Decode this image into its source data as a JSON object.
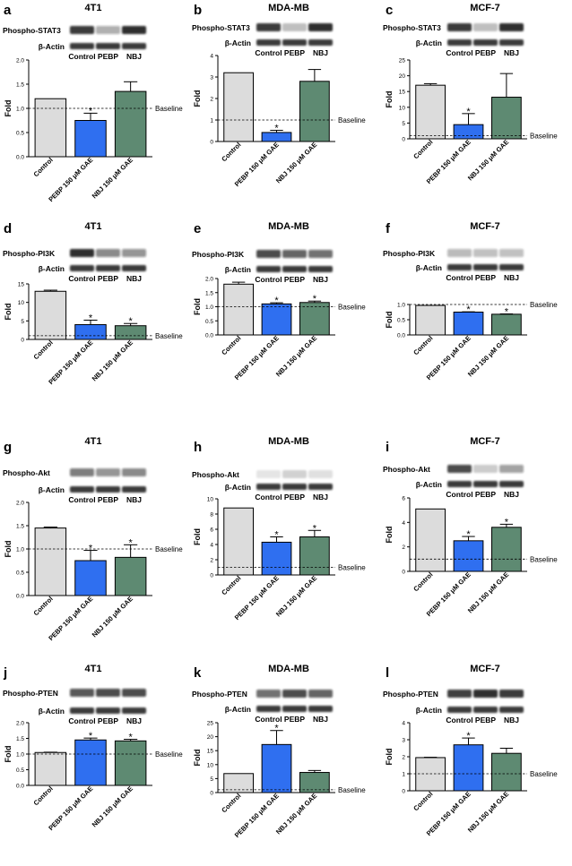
{
  "figure": {
    "colors": {
      "control": "#dcdcdc",
      "pebp": "#2f6ff0",
      "nbj": "#5e8a72",
      "edge": "#000000",
      "blot_dark": "#141414"
    },
    "baseline_label": "Baseline",
    "ylabel": "Fold",
    "x_tick_labels": [
      "Control",
      "PEBP 150 μM GAE",
      "NBJ 150 μM GAE"
    ],
    "blot_lane_labels": [
      "Control",
      "PEBP",
      "NBJ"
    ],
    "actin_label": "β-Actin",
    "significance_mark": "*"
  },
  "chart_data": [
    {
      "id": "a",
      "type": "bar",
      "panel_letter": "a",
      "title": "4T1",
      "blot_label": "Phospho-STAT3",
      "ylabel": "Fold",
      "categories": [
        "Control",
        "PEBP 150 μM GAE",
        "NBJ 150 μM GAE"
      ],
      "values": [
        1.2,
        0.75,
        1.35
      ],
      "errors": [
        0,
        0.15,
        0.2
      ],
      "significant": [
        false,
        true,
        false
      ],
      "baseline": 1.0,
      "ylim": [
        0,
        2.0
      ],
      "yticks": [
        0,
        0.5,
        1.0,
        1.5,
        2.0
      ],
      "ytick_labels": [
        "0.0",
        "0.5",
        "1.0",
        "1.5",
        "2.0"
      ],
      "blot_intensity": [
        0.85,
        0.35,
        0.9
      ],
      "actin_intensity": [
        0.85,
        0.85,
        0.85
      ]
    },
    {
      "id": "b",
      "type": "bar",
      "panel_letter": "b",
      "title": "MDA-MB",
      "blot_label": "Phospho-STAT3",
      "ylabel": "Fold",
      "categories": [
        "Control",
        "PEBP 150 μM GAE",
        "NBJ 150 μM GAE"
      ],
      "values": [
        3.2,
        0.42,
        2.8
      ],
      "errors": [
        0,
        0.1,
        0.55
      ],
      "significant": [
        false,
        true,
        false
      ],
      "baseline": 1.0,
      "ylim": [
        0,
        4
      ],
      "yticks": [
        0,
        1,
        2,
        3,
        4
      ],
      "ytick_labels": [
        "0",
        "1",
        "2",
        "3",
        "4"
      ],
      "blot_intensity": [
        0.85,
        0.25,
        0.9
      ],
      "actin_intensity": [
        0.85,
        0.85,
        0.85
      ]
    },
    {
      "id": "c",
      "type": "bar",
      "panel_letter": "c",
      "title": "MCF-7",
      "blot_label": "Phospho-STAT3",
      "ylabel": "Fold",
      "categories": [
        "Control",
        "PEBP 150 μM GAE",
        "NBJ 150 μM GAE"
      ],
      "values": [
        17,
        4.5,
        13.2
      ],
      "errors": [
        0.5,
        3.5,
        7.5
      ],
      "significant": [
        false,
        true,
        false
      ],
      "baseline": 1.0,
      "ylim": [
        0,
        25
      ],
      "yticks": [
        0,
        5,
        10,
        15,
        20,
        25
      ],
      "ytick_labels": [
        "0",
        "5",
        "10",
        "15",
        "20",
        "25"
      ],
      "blot_intensity": [
        0.85,
        0.25,
        0.9
      ],
      "actin_intensity": [
        0.85,
        0.85,
        0.85
      ]
    },
    {
      "id": "d",
      "type": "bar",
      "panel_letter": "d",
      "title": "4T1",
      "blot_label": "Phospho-PI3K",
      "ylabel": "Fold",
      "categories": [
        "Control",
        "PEBP 150 μM GAE",
        "NBJ 150 μM GAE"
      ],
      "values": [
        13,
        4,
        3.7
      ],
      "errors": [
        0.3,
        1.2,
        0.6
      ],
      "significant": [
        false,
        true,
        true
      ],
      "baseline": 1.0,
      "ylim": [
        0,
        15
      ],
      "yticks": [
        0,
        5,
        10,
        15
      ],
      "ytick_labels": [
        "0",
        "5",
        "10",
        "15"
      ],
      "blot_intensity": [
        0.9,
        0.5,
        0.45
      ],
      "actin_intensity": [
        0.85,
        0.85,
        0.85
      ]
    },
    {
      "id": "e",
      "type": "bar",
      "panel_letter": "e",
      "title": "MDA-MB",
      "blot_label": "Phospho-PI3K",
      "ylabel": "Fold",
      "categories": [
        "Control",
        "PEBP 150 μM GAE",
        "NBJ 150 μM GAE"
      ],
      "values": [
        1.8,
        1.1,
        1.15
      ],
      "errors": [
        0.07,
        0.04,
        0.05
      ],
      "significant": [
        false,
        true,
        true
      ],
      "baseline": 1.0,
      "ylim": [
        0,
        2.0
      ],
      "yticks": [
        0,
        0.5,
        1.0,
        1.5,
        2.0
      ],
      "ytick_labels": [
        "0.0",
        "0.5",
        "1.0",
        "1.5",
        "2.0"
      ],
      "blot_intensity": [
        0.75,
        0.65,
        0.6
      ],
      "actin_intensity": [
        0.85,
        0.85,
        0.85
      ]
    },
    {
      "id": "f",
      "type": "bar",
      "panel_letter": "f",
      "title": "MCF-7",
      "blot_label": "Phospho-PI3K",
      "ylabel": "Fold",
      "categories": [
        "Control",
        "PEBP 150 μM GAE",
        "NBJ 150 μM GAE"
      ],
      "values": [
        0.97,
        0.75,
        0.68
      ],
      "errors": [
        0,
        0.01,
        0.01
      ],
      "significant": [
        false,
        true,
        true
      ],
      "baseline": 1.0,
      "ylim": [
        0,
        1.0
      ],
      "yticks": [
        0,
        0.5,
        1.0
      ],
      "ytick_labels": [
        "0.0",
        "0.5",
        "1.0"
      ],
      "blot_intensity": [
        0.3,
        0.28,
        0.28
      ],
      "actin_intensity": [
        0.85,
        0.85,
        0.85
      ]
    },
    {
      "id": "g",
      "type": "bar",
      "panel_letter": "g",
      "title": "4T1",
      "blot_label": "Phospho-Akt",
      "ylabel": "Fold",
      "categories": [
        "Control",
        "PEBP 150 μM GAE",
        "NBJ 150 μM GAE"
      ],
      "values": [
        1.45,
        0.75,
        0.82
      ],
      "errors": [
        0.02,
        0.22,
        0.27
      ],
      "significant": [
        false,
        true,
        true
      ],
      "baseline": 1.0,
      "ylim": [
        0,
        2.0
      ],
      "yticks": [
        0,
        0.5,
        1.0,
        1.5,
        2.0
      ],
      "ytick_labels": [
        "0.0",
        "0.5",
        "1.0",
        "1.5",
        "2.0"
      ],
      "blot_intensity": [
        0.55,
        0.45,
        0.5
      ],
      "actin_intensity": [
        0.85,
        0.85,
        0.85
      ]
    },
    {
      "id": "h",
      "type": "bar",
      "panel_letter": "h",
      "title": "MDA-MB",
      "blot_label": "Phospho-Akt",
      "ylabel": "Fold",
      "categories": [
        "Control",
        "PEBP 150 μM GAE",
        "NBJ 150 μM GAE"
      ],
      "values": [
        8.8,
        4.3,
        5
      ],
      "errors": [
        0,
        0.7,
        0.85
      ],
      "significant": [
        false,
        true,
        true
      ],
      "baseline": 1.0,
      "ylim": [
        0,
        10
      ],
      "yticks": [
        0,
        2,
        4,
        6,
        8,
        10
      ],
      "ytick_labels": [
        "0",
        "2",
        "4",
        "6",
        "8",
        "10"
      ],
      "blot_intensity": [
        0.1,
        0.18,
        0.12
      ],
      "actin_intensity": [
        0.85,
        0.85,
        0.85
      ]
    },
    {
      "id": "i",
      "type": "bar",
      "panel_letter": "i",
      "title": "MCF-7",
      "blot_label": "Phospho-Akt",
      "ylabel": "Fold",
      "categories": [
        "Control",
        "PEBP 150 μM GAE",
        "NBJ 150 μM GAE"
      ],
      "values": [
        5.1,
        2.5,
        3.6
      ],
      "errors": [
        0,
        0.35,
        0.25
      ],
      "significant": [
        false,
        true,
        true
      ],
      "baseline": 1.0,
      "ylim": [
        0,
        6
      ],
      "yticks": [
        0,
        2,
        4,
        6
      ],
      "ytick_labels": [
        "0",
        "2",
        "4",
        "6"
      ],
      "blot_intensity": [
        0.75,
        0.2,
        0.4
      ],
      "actin_intensity": [
        0.85,
        0.85,
        0.85
      ]
    },
    {
      "id": "j",
      "type": "bar",
      "panel_letter": "j",
      "title": "4T1",
      "blot_label": "Phospho-PTEN",
      "ylabel": "Fold",
      "categories": [
        "Control",
        "PEBP 150 μM GAE",
        "NBJ 150 μM GAE"
      ],
      "values": [
        1.05,
        1.45,
        1.42
      ],
      "errors": [
        0.01,
        0.06,
        0.05
      ],
      "significant": [
        false,
        true,
        true
      ],
      "baseline": 1.0,
      "ylim": [
        0,
        2.0
      ],
      "yticks": [
        0,
        0.5,
        1.0,
        1.5,
        2.0
      ],
      "ytick_labels": [
        "0.0",
        "0.5",
        "1.0",
        "1.5",
        "2.0"
      ],
      "blot_intensity": [
        0.7,
        0.75,
        0.75
      ],
      "actin_intensity": [
        0.85,
        0.85,
        0.85
      ]
    },
    {
      "id": "k",
      "type": "bar",
      "panel_letter": "k",
      "title": "MDA-MB",
      "blot_label": "Phospho-PTEN",
      "ylabel": "Fold",
      "categories": [
        "Control",
        "PEBP 150 μM GAE",
        "NBJ 150 μM GAE"
      ],
      "values": [
        6.8,
        17.2,
        7.2
      ],
      "errors": [
        0,
        5,
        0.7
      ],
      "significant": [
        false,
        true,
        false
      ],
      "baseline": 1.0,
      "ylim": [
        0,
        25
      ],
      "yticks": [
        0,
        5,
        10,
        15,
        20,
        25
      ],
      "ytick_labels": [
        "0",
        "5",
        "10",
        "15",
        "20",
        "25"
      ],
      "blot_intensity": [
        0.6,
        0.75,
        0.65
      ],
      "actin_intensity": [
        0.85,
        0.85,
        0.85
      ]
    },
    {
      "id": "l",
      "type": "bar",
      "panel_letter": "l",
      "title": "MCF-7",
      "blot_label": "Phospho-PTEN",
      "ylabel": "Fold",
      "categories": [
        "Control",
        "PEBP 150 μM GAE",
        "NBJ 150 μM GAE"
      ],
      "values": [
        1.95,
        2.7,
        2.2
      ],
      "errors": [
        0.02,
        0.4,
        0.3
      ],
      "significant": [
        false,
        true,
        false
      ],
      "baseline": 1.0,
      "ylim": [
        0,
        4
      ],
      "yticks": [
        0,
        1,
        2,
        3,
        4
      ],
      "ytick_labels": [
        "0",
        "1",
        "2",
        "3",
        "4"
      ],
      "blot_intensity": [
        0.8,
        0.9,
        0.85
      ],
      "actin_intensity": [
        0.85,
        0.85,
        0.85
      ]
    }
  ]
}
